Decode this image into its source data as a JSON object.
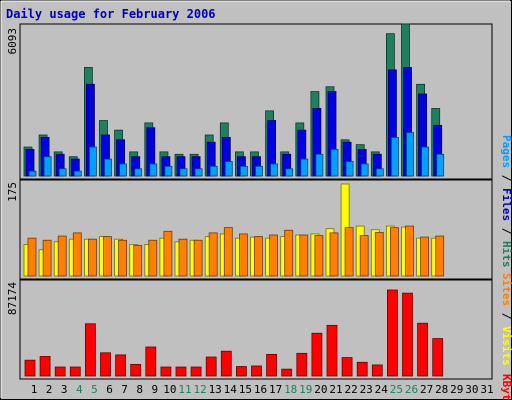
{
  "chart_data": {
    "type": "bar",
    "title": "Daily usage for February 2006",
    "categories": [
      "1",
      "2",
      "3",
      "4",
      "5",
      "6",
      "7",
      "8",
      "9",
      "10",
      "11",
      "12",
      "13",
      "14",
      "15",
      "16",
      "17",
      "18",
      "19",
      "20",
      "21",
      "22",
      "23",
      "24",
      "25",
      "26",
      "27",
      "28",
      "29",
      "30",
      "31"
    ],
    "weekend_days": [
      4,
      5,
      11,
      12,
      18,
      19,
      25,
      26
    ],
    "panels": [
      {
        "name": "hits-files-pages",
        "max_label": "6093",
        "ymax": 6093,
        "axis_labels": [
          {
            "text": "Pages",
            "color": "#00a0ff"
          },
          {
            "text": "Files",
            "color": "#0000c0"
          },
          {
            "text": "Hits",
            "color": "#1f7f5f"
          }
        ],
        "series": [
          {
            "name": "Hits",
            "color": "#1f7f5f",
            "values": [
              1200,
              1700,
              1000,
              800,
              4500,
              2300,
              1900,
              1000,
              2200,
              1000,
              900,
              900,
              1700,
              2200,
              1000,
              1000,
              2700,
              1000,
              2200,
              3500,
              3700,
              1500,
              1300,
              1000,
              5900,
              6300,
              3800,
              2800,
              0,
              0,
              0
            ]
          },
          {
            "name": "Files",
            "color": "#0000e0",
            "values": [
              1100,
              1600,
              900,
              700,
              3800,
              1700,
              1500,
              800,
              2000,
              800,
              800,
              800,
              1400,
              1600,
              800,
              800,
              2300,
              900,
              1900,
              2800,
              3500,
              1400,
              1100,
              900,
              4400,
              4500,
              3400,
              2100,
              0,
              0,
              0
            ]
          },
          {
            "name": "Pages",
            "color": "#00a0ff",
            "values": [
              200,
              800,
              300,
              200,
              1200,
              700,
              500,
              300,
              500,
              400,
              300,
              300,
              400,
              600,
              400,
              400,
              500,
              300,
              700,
              900,
              1100,
              600,
              500,
              300,
              1600,
              1800,
              1200,
              900,
              0,
              0,
              0
            ]
          }
        ]
      },
      {
        "name": "visits-sites",
        "max_label": "175",
        "ymax": 175,
        "axis_labels": [
          {
            "text": "Sites",
            "color": "#ff8000"
          },
          {
            "text": "Visits",
            "color": "#ffff00"
          }
        ],
        "series": [
          {
            "name": "Visits",
            "color": "#ffff00",
            "values": [
              60,
              50,
              65,
              70,
              70,
              75,
              70,
              60,
              60,
              72,
              65,
              68,
              75,
              80,
              72,
              74,
              72,
              75,
              78,
              80,
              90,
              175,
              95,
              88,
              95,
              93,
              72,
              72,
              0,
              0,
              0
            ]
          },
          {
            "name": "Sites",
            "color": "#ff8000",
            "values": [
              72,
              68,
              76,
              82,
              70,
              75,
              68,
              58,
              68,
              85,
              70,
              68,
              82,
              92,
              80,
              75,
              78,
              87,
              78,
              77,
              82,
              92,
              77,
              83,
              92,
              95,
              74,
              76,
              0,
              0,
              0
            ]
          }
        ]
      },
      {
        "name": "kbytes",
        "max_label": "87174",
        "ymax": 87174,
        "axis_labels": [
          {
            "text": "KBytes",
            "color": "#ff0000"
          }
        ],
        "series": [
          {
            "name": "KBytes",
            "color": "#ff0000",
            "values": [
              15000,
              18500,
              8500,
              8500,
              49500,
              22000,
              20000,
              11000,
              27500,
              8500,
              8500,
              8500,
              18000,
              23500,
              9000,
              9500,
              20500,
              6500,
              21500,
              40500,
              48000,
              17500,
              13000,
              10500,
              81500,
              78500,
              50000,
              35500,
              0,
              0,
              0
            ]
          }
        ]
      }
    ]
  }
}
